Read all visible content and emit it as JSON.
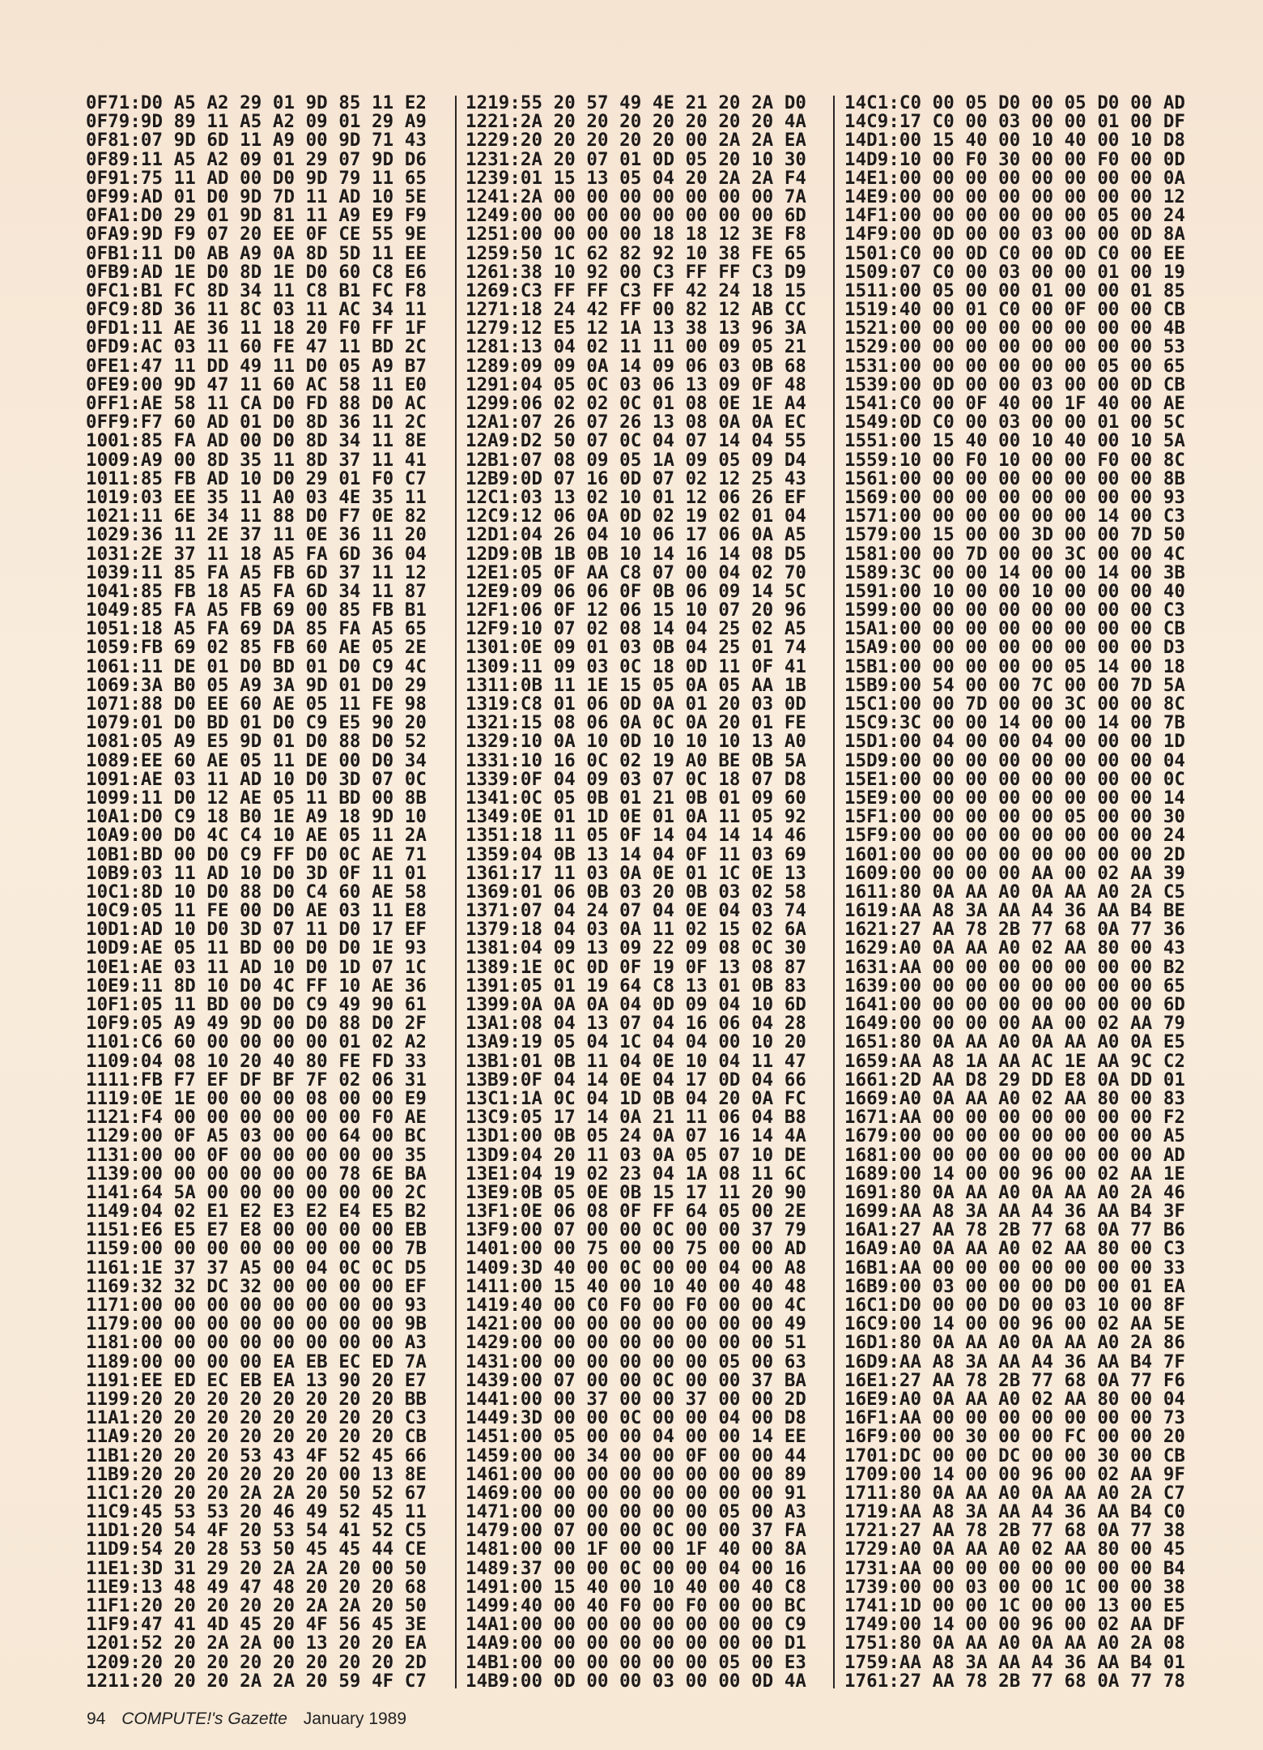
{
  "listing": {
    "columns": [
      {
        "lines": [
          "0F71:D0 A5 A2 29 01 9D 85 11 E2",
          "0F79:9D 89 11 A5 A2 09 01 29 A9",
          "0F81:07 9D 6D 11 A9 00 9D 71 43",
          "0F89:11 A5 A2 09 01 29 07 9D D6",
          "0F91:75 11 AD 00 D0 9D 79 11 65",
          "0F99:AD 01 D0 9D 7D 11 AD 10 5E",
          "0FA1:D0 29 01 9D 81 11 A9 E9 F9",
          "0FA9:9D F9 07 20 EE 0F CE 55 9E",
          "0FB1:11 D0 AB A9 0A 8D 5D 11 EE",
          "0FB9:AD 1E D0 8D 1E D0 60 C8 E6",
          "0FC1:B1 FC 8D 34 11 C8 B1 FC F8",
          "0FC9:8D 36 11 8C 03 11 AC 34 11",
          "0FD1:11 AE 36 11 18 20 F0 FF 1F",
          "0FD9:AC 03 11 60 FE 47 11 BD 2C",
          "0FE1:47 11 DD 49 11 D0 05 A9 B7",
          "0FE9:00 9D 47 11 60 AC 58 11 E0",
          "0FF1:AE 58 11 CA D0 FD 88 D0 AC",
          "0FF9:F7 60 AD 01 D0 8D 36 11 2C",
          "1001:85 FA AD 00 D0 8D 34 11 8E",
          "1009:A9 00 8D 35 11 8D 37 11 41",
          "1011:85 FB AD 10 D0 29 01 F0 C7",
          "1019:03 EE 35 11 A0 03 4E 35 11",
          "1021:11 6E 34 11 88 D0 F7 0E 82",
          "1029:36 11 2E 37 11 0E 36 11 20",
          "1031:2E 37 11 18 A5 FA 6D 36 04",
          "1039:11 85 FA A5 FB 6D 37 11 12",
          "1041:85 FB 18 A5 FA 6D 34 11 87",
          "1049:85 FA A5 FB 69 00 85 FB B1",
          "1051:18 A5 FA 69 DA 85 FA A5 65",
          "1059:FB 69 02 85 FB 60 AE 05 2E",
          "1061:11 DE 01 D0 BD 01 D0 C9 4C",
          "1069:3A B0 05 A9 3A 9D 01 D0 29",
          "1071:88 D0 EE 60 AE 05 11 FE 98",
          "1079:01 D0 BD 01 D0 C9 E5 90 20",
          "1081:05 A9 E5 9D 01 D0 88 D0 52",
          "1089:EE 60 AE 05 11 DE 00 D0 34",
          "1091:AE 03 11 AD 10 D0 3D 07 0C",
          "1099:11 D0 12 AE 05 11 BD 00 8B",
          "10A1:D0 C9 18 B0 1E A9 18 9D 10",
          "10A9:00 D0 4C C4 10 AE 05 11 2A",
          "10B1:BD 00 D0 C9 FF D0 0C AE 71",
          "10B9:03 11 AD 10 D0 3D 0F 11 01",
          "10C1:8D 10 D0 88 D0 C4 60 AE 58",
          "10C9:05 11 FE 00 D0 AE 03 11 E8",
          "10D1:AD 10 D0 3D 07 11 D0 17 EF",
          "10D9:AE 05 11 BD 00 D0 D0 1E 93",
          "10E1:AE 03 11 AD 10 D0 1D 07 1C",
          "10E9:11 8D 10 D0 4C FF 10 AE 36",
          "10F1:05 11 BD 00 D0 C9 49 90 61",
          "10F9:05 A9 49 9D 00 D0 88 D0 2F",
          "1101:C6 60 00 00 00 00 01 02 A2",
          "1109:04 08 10 20 40 80 FE FD 33",
          "1111:FB F7 EF DF BF 7F 02 06 31",
          "1119:0E 1E 00 00 00 08 00 00 E9",
          "1121:F4 00 00 00 00 00 00 F0 AE",
          "1129:00 0F A5 03 00 00 64 00 BC",
          "1131:00 00 0F 00 00 00 00 00 35",
          "1139:00 00 00 00 00 00 78 6E BA",
          "1141:64 5A 00 00 00 00 00 00 2C",
          "1149:04 02 E1 E2 E3 E2 E4 E5 B2",
          "1151:E6 E5 E7 E8 00 00 00 00 EB",
          "1159:00 00 00 00 00 00 00 00 7B",
          "1161:1E 37 37 A5 00 04 0C 0C D5",
          "1169:32 32 DC 32 00 00 00 00 EF",
          "1171:00 00 00 00 00 00 00 00 93",
          "1179:00 00 00 00 00 00 00 00 9B",
          "1181:00 00 00 00 00 00 00 00 A3",
          "1189:00 00 00 00 EA EB EC ED 7A",
          "1191:EE ED EC EB EA 13 90 20 E7",
          "1199:20 20 20 20 20 20 20 20 BB",
          "11A1:20 20 20 20 20 20 20 20 C3",
          "11A9:20 20 20 20 20 20 20 20 CB",
          "11B1:20 20 20 53 43 4F 52 45 66",
          "11B9:20 20 20 20 20 20 00 13 8E",
          "11C1:20 20 20 2A 2A 20 50 52 67",
          "11C9:45 53 53 20 46 49 52 45 11",
          "11D1:20 54 4F 20 53 54 41 52 C5",
          "11D9:54 20 28 53 50 45 45 44 CE",
          "11E1:3D 31 29 20 2A 2A 20 00 50",
          "11E9:13 48 49 47 48 20 20 20 68",
          "11F1:20 20 20 20 20 2A 2A 20 50",
          "11F9:47 41 4D 45 20 4F 56 45 3E",
          "1201:52 20 2A 2A 00 13 20 20 EA",
          "1209:20 20 20 20 20 20 20 20 2D",
          "1211:20 20 20 2A 2A 20 59 4F C7"
        ]
      },
      {
        "lines": [
          "1219:55 20 57 49 4E 21 20 2A D0",
          "1221:2A 20 20 20 20 20 20 20 4A",
          "1229:20 20 20 20 20 00 2A 2A EA",
          "1231:2A 20 07 01 0D 05 20 10 30",
          "1239:01 15 13 05 04 20 2A 2A F4",
          "1241:2A 00 00 00 00 00 00 00 7A",
          "1249:00 00 00 00 00 00 00 00 6D",
          "1251:00 00 00 00 18 18 12 3E F8",
          "1259:50 1C 62 82 92 10 38 FE 65",
          "1261:38 10 92 00 C3 FF FF C3 D9",
          "1269:C3 FF FF C3 FF 42 24 18 15",
          "1271:18 24 42 FF 00 82 12 AB CC",
          "1279:12 E5 12 1A 13 38 13 96 3A",
          "1281:13 04 02 11 11 00 09 05 21",
          "1289:09 09 0A 14 09 06 03 0B 68",
          "1291:04 05 0C 03 06 13 09 0F 48",
          "1299:06 02 02 0C 01 08 0E 1E A4",
          "12A1:07 26 07 26 13 08 0A 0A EC",
          "12A9:D2 50 07 0C 04 07 14 04 55",
          "12B1:07 08 09 05 1A 09 05 09 D4",
          "12B9:0D 07 16 0D 07 02 12 25 43",
          "12C1:03 13 02 10 01 12 06 26 EF",
          "12C9:12 06 0A 0D 02 19 02 01 04",
          "12D1:04 26 04 10 06 17 06 0A A5",
          "12D9:0B 1B 0B 10 14 16 14 08 D5",
          "12E1:05 0F AA C8 07 00 04 02 70",
          "12E9:09 06 06 0F 0B 06 09 14 5C",
          "12F1:06 0F 12 06 15 10 07 20 96",
          "12F9:10 07 02 08 14 04 25 02 A5",
          "1301:0E 09 01 03 0B 04 25 01 74",
          "1309:11 09 03 0C 18 0D 11 0F 41",
          "1311:0B 11 1E 15 05 0A 05 AA 1B",
          "1319:C8 01 06 0D 0A 01 20 03 0D",
          "1321:15 08 06 0A 0C 0A 20 01 FE",
          "1329:10 0A 10 0D 10 10 10 13 A0",
          "1331:10 16 0C 02 19 A0 BE 0B 5A",
          "1339:0F 04 09 03 07 0C 18 07 D8",
          "1341:0C 05 0B 01 21 0B 01 09 60",
          "1349:0E 01 1D 0E 01 0A 11 05 92",
          "1351:18 11 05 0F 14 04 14 14 46",
          "1359:04 0B 13 14 04 0F 11 03 69",
          "1361:17 11 03 0A 0E 01 1C 0E 13",
          "1369:01 06 0B 03 20 0B 03 02 58",
          "1371:07 04 24 07 04 0E 04 03 74",
          "1379:18 04 03 0A 11 02 15 02 6A",
          "1381:04 09 13 09 22 09 08 0C 30",
          "1389:1E 0C 0D 0F 19 0F 13 08 87",
          "1391:05 01 19 64 C8 13 01 0B 83",
          "1399:0A 0A 0A 04 0D 09 04 10 6D",
          "13A1:08 04 13 07 04 16 06 04 28",
          "13A9:19 05 04 1C 04 04 00 10 20",
          "13B1:01 0B 11 04 0E 10 04 11 47",
          "13B9:0F 04 14 0E 04 17 0D 04 66",
          "13C1:1A 0C 04 1D 0B 04 20 0A FC",
          "13C9:05 17 14 0A 21 11 06 04 B8",
          "13D1:00 0B 05 24 0A 07 16 14 4A",
          "13D9:04 20 11 03 0A 05 07 10 DE",
          "13E1:04 19 02 23 04 1A 08 11 6C",
          "13E9:0B 05 0E 0B 15 17 11 20 90",
          "13F1:0E 06 08 0F FF 64 05 00 2E",
          "13F9:00 07 00 00 0C 00 00 37 79",
          "1401:00 00 75 00 00 75 00 00 AD",
          "1409:3D 40 00 0C 00 00 04 00 A8",
          "1411:00 15 40 00 10 40 00 40 48",
          "1419:40 00 C0 F0 00 F0 00 00 4C",
          "1421:00 00 00 00 00 00 00 00 49",
          "1429:00 00 00 00 00 00 00 00 51",
          "1431:00 00 00 00 00 00 05 00 63",
          "1439:00 07 00 00 0C 00 00 37 BA",
          "1441:00 00 37 00 00 37 00 00 2D",
          "1449:3D 00 00 0C 00 00 04 00 D8",
          "1451:00 05 00 00 04 00 00 14 EE",
          "1459:00 00 34 00 00 0F 00 00 44",
          "1461:00 00 00 00 00 00 00 00 89",
          "1469:00 00 00 00 00 00 00 00 91",
          "1471:00 00 00 00 00 00 05 00 A3",
          "1479:00 07 00 00 0C 00 00 37 FA",
          "1481:00 00 1F 00 00 1F 40 00 8A",
          "1489:37 00 00 0C 00 00 04 00 16",
          "1491:00 15 40 00 10 40 00 40 C8",
          "1499:40 00 40 F0 00 F0 00 00 BC",
          "14A1:00 00 00 00 00 00 00 00 C9",
          "14A9:00 00 00 00 00 00 00 00 D1",
          "14B1:00 00 00 00 00 00 05 00 E3",
          "14B9:00 0D 00 00 03 00 00 0D 4A"
        ]
      },
      {
        "lines": [
          "14C1:C0 00 05 D0 00 05 D0 00 AD",
          "14C9:17 C0 00 03 00 00 01 00 DF",
          "14D1:00 15 40 00 10 40 00 10 D8",
          "14D9:10 00 F0 30 00 00 F0 00 0D",
          "14E1:00 00 00 00 00 00 00 00 0A",
          "14E9:00 00 00 00 00 00 00 00 12",
          "14F1:00 00 00 00 00 00 05 00 24",
          "14F9:00 0D 00 00 03 00 00 0D 8A",
          "1501:C0 00 0D C0 00 0D C0 00 EE",
          "1509:07 C0 00 03 00 00 01 00 19",
          "1511:00 05 00 00 01 00 00 01 85",
          "1519:40 00 01 C0 00 0F 00 00 CB",
          "1521:00 00 00 00 00 00 00 00 4B",
          "1529:00 00 00 00 00 00 00 00 53",
          "1531:00 00 00 00 00 00 05 00 65",
          "1539:00 0D 00 00 03 00 00 0D CB",
          "1541:C0 00 0F 40 00 1F 40 00 AE",
          "1549:0D C0 00 03 00 00 01 00 5C",
          "1551:00 15 40 00 10 40 00 10 5A",
          "1559:10 00 F0 10 00 00 F0 00 8C",
          "1561:00 00 00 00 00 00 00 00 8B",
          "1569:00 00 00 00 00 00 00 00 93",
          "1571:00 00 00 00 00 00 14 00 C3",
          "1579:00 15 00 00 3D 00 00 7D 50",
          "1581:00 00 7D 00 00 3C 00 00 4C",
          "1589:3C 00 00 14 00 00 14 00 3B",
          "1591:00 10 00 00 10 00 00 00 40",
          "1599:00 00 00 00 00 00 00 00 C3",
          "15A1:00 00 00 00 00 00 00 00 CB",
          "15A9:00 00 00 00 00 00 00 00 D3",
          "15B1:00 00 00 00 00 05 14 00 18",
          "15B9:00 54 00 00 7C 00 00 7D 5A",
          "15C1:00 00 7D 00 00 3C 00 00 8C",
          "15C9:3C 00 00 14 00 00 14 00 7B",
          "15D1:00 04 00 00 04 00 00 00 1D",
          "15D9:00 00 00 00 00 00 00 00 04",
          "15E1:00 00 00 00 00 00 00 00 0C",
          "15E9:00 00 00 00 00 00 00 00 14",
          "15F1:00 00 00 00 00 05 00 00 30",
          "15F9:00 00 00 00 00 00 00 00 24",
          "1601:00 00 00 00 00 00 00 00 2D",
          "1609:00 00 00 00 AA 00 02 AA 39",
          "1611:80 0A AA A0 0A AA A0 2A C5",
          "1619:AA A8 3A AA A4 36 AA B4 BE",
          "1621:27 AA 78 2B 77 68 0A 77 36",
          "1629:A0 0A AA A0 02 AA 80 00 43",
          "1631:AA 00 00 00 00 00 00 00 B2",
          "1639:00 00 00 00 00 00 00 00 65",
          "1641:00 00 00 00 00 00 00 00 6D",
          "1649:00 00 00 00 AA 00 02 AA 79",
          "1651:80 0A AA A0 0A AA A0 0A E5",
          "1659:AA A8 1A AA AC 1E AA 9C C2",
          "1661:2D AA D8 29 DD E8 0A DD 01",
          "1669:A0 0A AA A0 02 AA 80 00 83",
          "1671:AA 00 00 00 00 00 00 00 F2",
          "1679:00 00 00 00 00 00 00 00 A5",
          "1681:00 00 00 00 00 00 00 00 AD",
          "1689:00 14 00 00 96 00 02 AA 1E",
          "1691:80 0A AA A0 0A AA A0 2A 46",
          "1699:AA A8 3A AA A4 36 AA B4 3F",
          "16A1:27 AA 78 2B 77 68 0A 77 B6",
          "16A9:A0 0A AA A0 02 AA 80 00 C3",
          "16B1:AA 00 00 00 00 00 00 00 33",
          "16B9:00 03 00 00 00 D0 00 01 EA",
          "16C1:D0 00 00 D0 00 03 10 00 8F",
          "16C9:00 14 00 00 96 00 02 AA 5E",
          "16D1:80 0A AA A0 0A AA A0 2A 86",
          "16D9:AA A8 3A AA A4 36 AA B4 7F",
          "16E1:27 AA 78 2B 77 68 0A 77 F6",
          "16E9:A0 0A AA A0 02 AA 80 00 04",
          "16F1:AA 00 00 00 00 00 00 00 73",
          "16F9:00 00 30 00 00 FC 00 00 20",
          "1701:DC 00 00 DC 00 00 30 00 CB",
          "1709:00 14 00 00 96 00 02 AA 9F",
          "1711:80 0A AA A0 0A AA A0 2A C7",
          "1719:AA A8 3A AA A4 36 AA B4 C0",
          "1721:27 AA 78 2B 77 68 0A 77 38",
          "1729:A0 0A AA A0 02 AA 80 00 45",
          "1731:AA 00 00 00 00 00 00 00 B4",
          "1739:00 00 03 00 00 1C 00 00 38",
          "1741:1D 00 00 1C 00 00 13 00 E5",
          "1749:00 14 00 00 96 00 02 AA DF",
          "1751:80 0A AA A0 0A AA A0 2A 08",
          "1759:AA A8 3A AA A4 36 AA B4 01",
          "1761:27 AA 78 2B 77 68 0A 77 78"
        ]
      }
    ]
  },
  "footer": {
    "page_number": "94",
    "magazine": "COMPUTE!'s Gazette",
    "issue": "January 1989"
  }
}
